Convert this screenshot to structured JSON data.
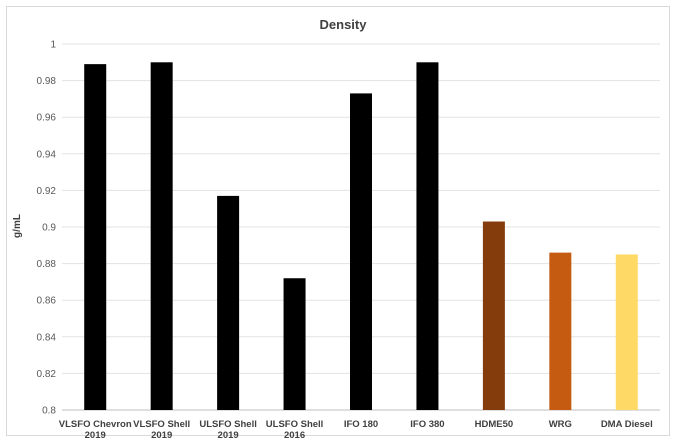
{
  "chart_data": {
    "type": "bar",
    "title": "Density",
    "xlabel": "",
    "ylabel": "g/mL",
    "ylim": [
      0.8,
      1.0
    ],
    "yticks": [
      "0.8",
      "0.82",
      "0.84",
      "0.86",
      "0.88",
      "0.9",
      "0.92",
      "0.94",
      "0.96",
      "0.98",
      "1"
    ],
    "grid": true,
    "legend": "none",
    "categories": [
      [
        "VLSFO Chevron",
        "2019"
      ],
      [
        "VLSFO Shell",
        "2019"
      ],
      [
        "ULSFO Shell",
        "2019"
      ],
      [
        "ULSFO Shell",
        "2016"
      ],
      [
        "IFO 180"
      ],
      [
        "IFO 380"
      ],
      [
        "HDME50"
      ],
      [
        "WRG"
      ],
      [
        "DMA Diesel"
      ]
    ],
    "values": [
      0.989,
      0.99,
      0.917,
      0.872,
      0.973,
      0.99,
      0.903,
      0.886,
      0.885
    ],
    "colors": [
      "#000000",
      "#000000",
      "#000000",
      "#000000",
      "#000000",
      "#000000",
      "#843c0c",
      "#c55a11",
      "#ffd966"
    ]
  }
}
